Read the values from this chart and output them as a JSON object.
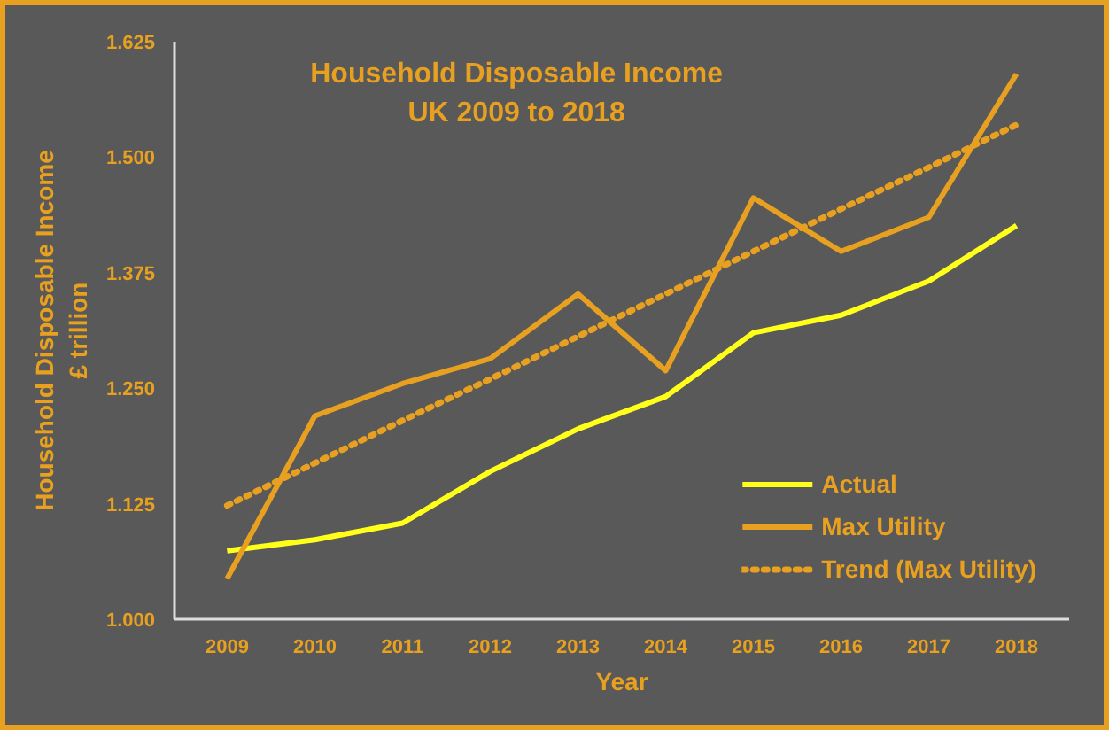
{
  "chart_data": {
    "type": "line",
    "title": "Household Disposable Income\nUK 2009 to 2018",
    "xlabel": "Year",
    "ylabel": "Household Disposable Income\n£ trillion",
    "categories": [
      "2009",
      "2010",
      "2011",
      "2012",
      "2013",
      "2014",
      "2015",
      "2016",
      "2017",
      "2018"
    ],
    "series": [
      {
        "name": "Actual",
        "color": "#ffff1a",
        "values": [
          1.074,
          1.086,
          1.104,
          1.16,
          1.206,
          1.241,
          1.31,
          1.329,
          1.366,
          1.426
        ]
      },
      {
        "name": "Max Utility",
        "color": "#e8a020",
        "values": [
          1.044,
          1.22,
          1.255,
          1.282,
          1.352,
          1.269,
          1.456,
          1.398,
          1.435,
          1.59
        ]
      },
      {
        "name": "Trend (Max Utility)",
        "color": "#e8a020",
        "line_style": "dotted",
        "values": [
          1.123,
          1.169,
          1.215,
          1.26,
          1.306,
          1.352,
          1.398,
          1.444,
          1.489,
          1.535
        ]
      }
    ],
    "ylim": [
      1.0,
      1.625
    ],
    "yticks": [
      {
        "value": 1.0,
        "label": "1.000"
      },
      1.125,
      {
        "value": 1.25,
        "label": "1.250"
      },
      1.375,
      {
        "value": 1.5,
        "label": "1.500"
      },
      1.625
    ],
    "grid": false,
    "legend": "bottom right",
    "marker": "none",
    "line_style": "solid"
  }
}
